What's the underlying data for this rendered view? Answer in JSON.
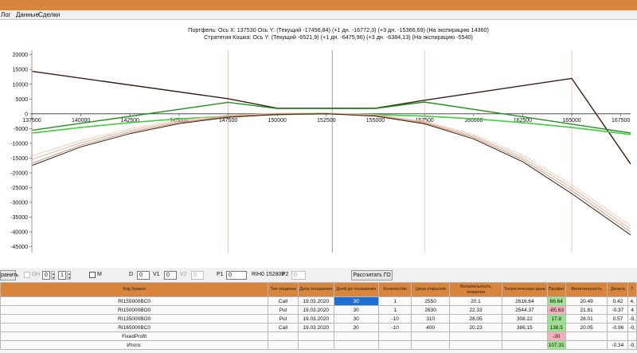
{
  "tabs": [
    "Лог",
    "Данные",
    "Сделки"
  ],
  "colors": {
    "accent": "#d9853b",
    "green_dark": "#1f8f1f",
    "green_light": "#3fcf3f",
    "brown_dark": "#3a1f14",
    "selection": "#1d6fd4",
    "profit_positive": "#9de28f",
    "profit_negative": "#f5aebd"
  },
  "chart": {
    "title_line1": "Портфель: Ось X: 137530 Ось Y:  (Текущий -17456,84)  (+1 дн. -16772,3)  (+3 дн. -15366,69)  (На экспирацию 14360)",
    "title_line2": "Стратегия Кошка:  Ось Y:  (Текущий -6521,9)  (+1 дн. -6475,96)  (+3 дн. -6384,13)  (На экспирацию -5540)"
  },
  "chart_data": {
    "type": "line",
    "xlim": [
      137500,
      168000
    ],
    "ylim": [
      -47000,
      21000
    ],
    "x_ticks": [
      137500,
      140000,
      142500,
      145000,
      147500,
      150000,
      152500,
      155000,
      157500,
      160000,
      162500,
      165000,
      167500
    ],
    "y_ticks": [
      20000,
      15000,
      10000,
      5000,
      0,
      -5000,
      -10000,
      -15000,
      -20000,
      -25000,
      -30000,
      -35000,
      -40000,
      -45000
    ],
    "grid": false,
    "cursor_x": 152800,
    "vlines_red": [
      137500,
      147500,
      157500,
      165000
    ],
    "series": [
      {
        "color": "#3a1f14",
        "width": 1.4,
        "x": [
          137530,
          147500,
          150000,
          155000,
          157500,
          165000,
          168000
        ],
        "y": [
          14360,
          5100,
          1900,
          1900,
          4600,
          12000,
          -17000
        ]
      },
      {
        "color": "#1f8f1f",
        "width": 1.4,
        "x": [
          137530,
          147500,
          150000,
          155000,
          157500,
          168000
        ],
        "y": [
          -5540,
          3900,
          1800,
          1800,
          4000,
          -6500
        ]
      },
      {
        "color": "#3fcf3f",
        "width": 1.6,
        "x": [
          137530,
          140000,
          142500,
          145000,
          147500,
          150000,
          152500,
          155000,
          157500,
          160000,
          162500,
          165000,
          168000
        ],
        "y": [
          -6500,
          -4600,
          -3000,
          -1700,
          -800,
          -250,
          0,
          -250,
          -800,
          -1700,
          -3000,
          -4600,
          -7000
        ]
      },
      {
        "color": "#e8c8a0",
        "width": 0.8,
        "x": [
          137530,
          140000,
          142500,
          145000,
          147500,
          150000,
          152500,
          155000,
          157500,
          160000,
          162500,
          165000,
          168000
        ],
        "y": [
          -14200,
          -9000,
          -5000,
          -2200,
          -500,
          200,
          300,
          -300,
          -2500,
          -7000,
          -14000,
          -24000,
          -38000
        ]
      },
      {
        "color": "#e3a090",
        "width": 0.8,
        "x": [
          137530,
          140000,
          142500,
          145000,
          147500,
          150000,
          152500,
          155000,
          157500,
          160000,
          162500,
          165000,
          168000
        ],
        "y": [
          -15400,
          -9800,
          -5600,
          -2600,
          -800,
          0,
          150,
          -500,
          -2800,
          -7500,
          -14800,
          -25000,
          -39000
        ]
      },
      {
        "color": "#c08060",
        "width": 0.8,
        "x": [
          137530,
          140000,
          142500,
          145000,
          147500,
          150000,
          152500,
          155000,
          157500,
          160000,
          162500,
          165000,
          168000
        ],
        "y": [
          -16700,
          -10600,
          -6200,
          -3000,
          -1000,
          -100,
          50,
          -650,
          -3100,
          -8000,
          -15500,
          -26000,
          -40000
        ]
      },
      {
        "color": "#3a1f14",
        "width": 1.0,
        "x": [
          137530,
          140000,
          142500,
          145000,
          147500,
          150000,
          152500,
          155000,
          157500,
          160000,
          162500,
          165000,
          168000
        ],
        "y": [
          -17456,
          -11200,
          -6700,
          -3300,
          -1200,
          -200,
          0,
          -800,
          -3400,
          -8500,
          -16200,
          -27000,
          -41000
        ]
      }
    ]
  },
  "controls": {
    "apply_label": "ранить",
    "dh_label": "DH",
    "dh_value1": "0",
    "dh_value2": "1",
    "m_label": "M",
    "d_label": "D",
    "d_value": "0",
    "v1_label": "V1",
    "v1_value": "0",
    "v2_label": "V2",
    "v2_value": "0",
    "p1_label": "P1",
    "p1_value": "0",
    "ticker_info": "RIH0 152800",
    "p2_label": "P2",
    "p2_value": "0",
    "calc_button": "Рассчитать ГО"
  },
  "table": {
    "headers": [
      "Код бумаги",
      "Тип опциона",
      "Дата погашения",
      "Дней до погашения",
      "Количество",
      "Цена открытия",
      "Волатильность открытия",
      "Теоретическая цена",
      "Профит",
      "Волатильность",
      "Дельта",
      "Г"
    ],
    "rows": [
      [
        "RI155000BC0",
        "Call",
        "19.03.2020",
        "30",
        "1",
        "2550",
        "20.1",
        "2616.64",
        "66.64",
        "20.49",
        "0.42",
        "4,"
      ],
      [
        "RI150000BO0",
        "Put",
        "19.03.2020",
        "30",
        "1",
        "2630",
        "22.33",
        "2544.37",
        "-85.63",
        "21.81",
        "-0.37",
        "4"
      ],
      [
        "RI135000BO0",
        "Put",
        "19.03.2020",
        "30",
        "-10",
        "310",
        "28.05",
        "308.22",
        "17.8",
        "28.01",
        "0.57",
        "-9,"
      ],
      [
        "RI165000BC0",
        "Call",
        "19.03.2020",
        "30",
        "-10",
        "400",
        "20.23",
        "386.15",
        "138.5",
        "20.05",
        "-0.96",
        "-0,"
      ]
    ],
    "fixed_profit_label": "FixedProfit",
    "fixed_profit_value": "-30",
    "total_label": "Итого:",
    "total_profit": "107.31",
    "total_delta": "-0.34",
    "total_gamma": "-0,"
  }
}
